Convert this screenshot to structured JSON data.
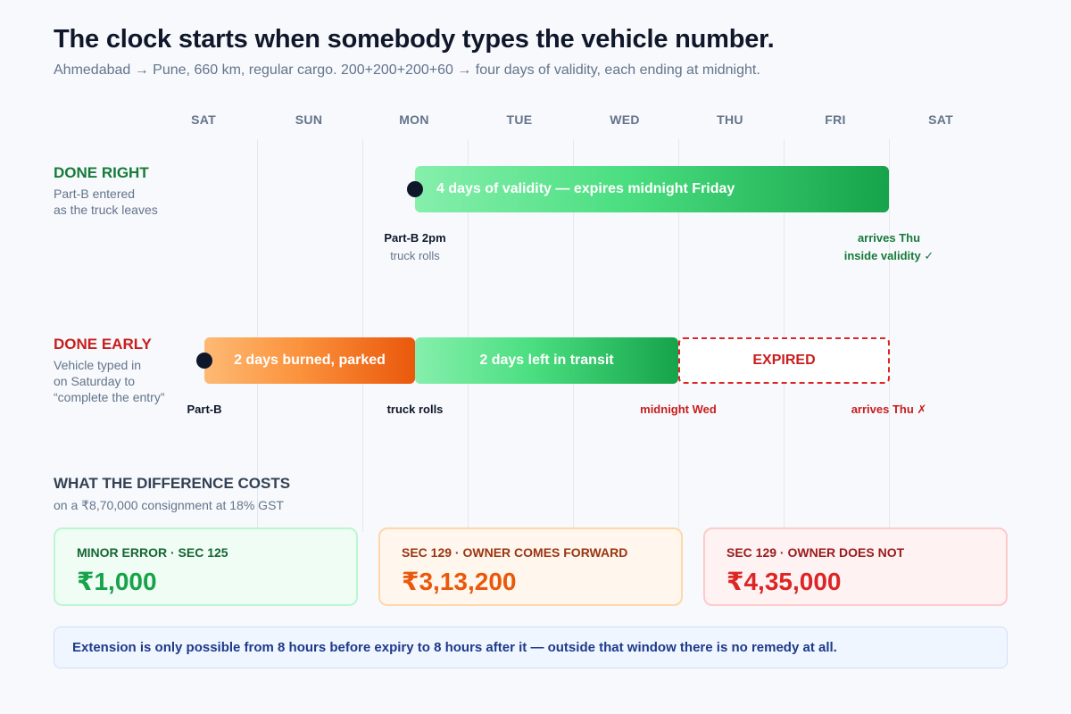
{
  "title": "The clock starts when somebody types the vehicle number.",
  "subtitle": "Ahmedabad → Pune, 660 km, regular cargo. 200+200+200+60 → four days of validity, each ending at midnight.",
  "timeline": {
    "days": [
      "SAT",
      "SUN",
      "MON",
      "TUE",
      "WED",
      "THU",
      "FRI",
      "SAT"
    ]
  },
  "done_right": {
    "title": "DONE RIGHT",
    "desc_line1": "Part-B entered",
    "desc_line2": "as the truck leaves",
    "bar_label": "4 days of validity — expires midnight Friday",
    "start_bold": "Part-B 2pm",
    "start_sub": "truck rolls",
    "end_line1": "arrives Thu",
    "end_line2": "inside validity ✓"
  },
  "done_early": {
    "title": "DONE EARLY",
    "desc_line1": "Vehicle typed in",
    "desc_line2": "on Saturday to",
    "desc_line3": "“complete the entry”",
    "burned_label": "2 days burned, parked",
    "left_label": "2 days left in transit",
    "expired_label": "EXPIRED",
    "start_label": "Part-B",
    "rolls_label": "truck rolls",
    "midnight_label": "midnight Wed",
    "arrives_label": "arrives Thu ✗"
  },
  "costs": {
    "heading": "WHAT THE DIFFERENCE COSTS",
    "subheading": "on a ₹8,70,000 consignment at 18% GST",
    "cards": [
      {
        "label": "MINOR ERROR · SEC 125",
        "amount": "₹1,000"
      },
      {
        "label": "SEC 129 · OWNER COMES FORWARD",
        "amount": "₹3,13,200"
      },
      {
        "label": "SEC 129 · OWNER DOES NOT",
        "amount": "₹4,35,000"
      }
    ]
  },
  "note": "Extension is only possible from 8 hours before expiry to 8 hours after it — outside that window there is no remedy at all.",
  "colors": {
    "green": "#16a34a",
    "orange": "#ea580c",
    "red": "#dc2626",
    "navy": "#0f172a"
  }
}
